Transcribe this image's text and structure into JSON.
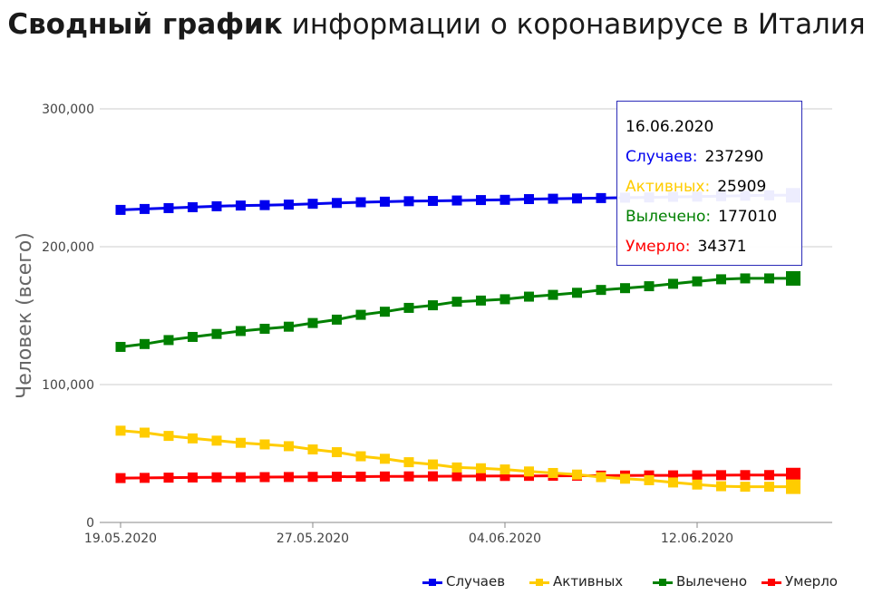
{
  "title": {
    "bold": "Сводный график",
    "rest": " информации о коронавирусе в Италия"
  },
  "colors": {
    "cases": "#0000ee",
    "active": "#ffcc00",
    "recovered": "#008000",
    "deaths": "#ff0000",
    "grid": "#cccccc"
  },
  "tooltip": {
    "date": "16.06.2020",
    "cases_label": "Случаев:",
    "cases_value": "237290",
    "active_label": "Активных:",
    "active_value": "25909",
    "recovered_label": "Вылечено:",
    "recovered_value": "177010",
    "deaths_label": "Умерло:",
    "deaths_value": "34371"
  },
  "legend": [
    "Случаев",
    "Активных",
    "Вылечено",
    "Умерло"
  ],
  "chart_data": {
    "type": "line",
    "title": "Сводный график информации о коронавирусе в Италия",
    "xlabel": "",
    "ylabel": "Человек (всего)",
    "ylim": [
      0,
      300000
    ],
    "yticks": [
      "0",
      "100,000",
      "200,000",
      "300,000"
    ],
    "ytick_values": [
      0,
      100000,
      200000,
      300000
    ],
    "xtick_labels": [
      "19.05.2020",
      "27.05.2020",
      "04.06.2020",
      "12.06.2020"
    ],
    "xtick_indices": [
      0,
      8,
      16,
      24
    ],
    "legend_position": "bottom-right",
    "grid": true,
    "x": [
      "19.05.2020",
      "20.05.2020",
      "21.05.2020",
      "22.05.2020",
      "23.05.2020",
      "24.05.2020",
      "25.05.2020",
      "26.05.2020",
      "27.05.2020",
      "28.05.2020",
      "29.05.2020",
      "30.05.2020",
      "31.05.2020",
      "01.06.2020",
      "02.06.2020",
      "03.06.2020",
      "04.06.2020",
      "05.06.2020",
      "06.06.2020",
      "07.06.2020",
      "08.06.2020",
      "09.06.2020",
      "10.06.2020",
      "11.06.2020",
      "12.06.2020",
      "13.06.2020",
      "14.06.2020",
      "15.06.2020",
      "16.06.2020"
    ],
    "series": [
      {
        "name": "Случаев",
        "color": "#0000ee",
        "values": [
          226699,
          227364,
          228006,
          228658,
          229327,
          229858,
          230158,
          230555,
          231139,
          231732,
          232248,
          232664,
          232997,
          233197,
          233515,
          233836,
          234013,
          234531,
          234801,
          234998,
          235278,
          235561,
          235763,
          236142,
          236305,
          236651,
          236989,
          237290,
          237290
        ]
      },
      {
        "name": "Активных",
        "color": "#ffcc00",
        "values": [
          66553,
          65129,
          62752,
          60960,
          59322,
          57752,
          56594,
          55300,
          52942,
          50966,
          47986,
          46175,
          43691,
          42075,
          39893,
          39297,
          38429,
          36976,
          35877,
          34730,
          32872,
          31710,
          30637,
          28997,
          27485,
          26274,
          25909,
          25909,
          25909
        ]
      },
      {
        "name": "Вылечено",
        "color": "#008000",
        "values": [
          127326,
          129401,
          132282,
          134560,
          136720,
          138840,
          140479,
          141981,
          144658,
          147101,
          150604,
          152844,
          155633,
          157507,
          160092,
          160938,
          161895,
          163781,
          165078,
          166584,
          168646,
          169939,
          171338,
          173085,
          174865,
          176370,
          177010,
          177010,
          177010
        ]
      },
      {
        "name": "Умерло",
        "color": "#ff0000",
        "values": [
          32169,
          32330,
          32486,
          32616,
          32735,
          32785,
          32877,
          32955,
          33072,
          33142,
          33229,
          33340,
          33415,
          33475,
          33530,
          33601,
          33689,
          33774,
          33846,
          33899,
          33964,
          34043,
          34114,
          34167,
          34223,
          34301,
          34345,
          34371,
          34371
        ]
      }
    ]
  }
}
